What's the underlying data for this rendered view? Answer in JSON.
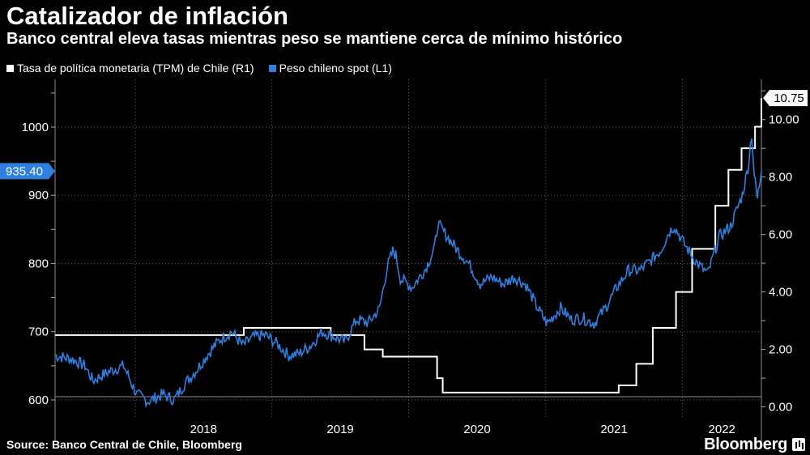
{
  "header": {
    "title": "Catalizador de inflación",
    "subtitle": "Banco central eleva tasas mientras peso se mantiene cerca de mínimo histórico"
  },
  "footer": {
    "source": "Source: Banco Central de Chile, Bloomberg",
    "brand": "Bloomberg"
  },
  "colors": {
    "background": "#000000",
    "peso": "#2f7fe0",
    "tpm": "#ffffff",
    "grid": "#666666"
  },
  "chart_data": {
    "type": "line",
    "title": "Catalizador de inflación",
    "subtitle": "Banco central eleva tasas mientras peso se mantiene cerca de mínimo histórico",
    "x_tick_labels": [
      "2018",
      "2019",
      "2020",
      "2021",
      "2022"
    ],
    "xlim": [
      "2017-06-01",
      "2022-07-31"
    ],
    "y_left": {
      "ticks": [
        "600",
        "700",
        "800",
        "900",
        "1000"
      ],
      "ylim": [
        575,
        1070
      ]
    },
    "y_right": {
      "ticks": [
        "0.00",
        "2.00",
        "4.00",
        "6.00",
        "8.00",
        "10.00"
      ],
      "ylim": [
        -0.35,
        11.4
      ]
    },
    "grid": true,
    "legend_position": "top-left",
    "series": [
      {
        "name": "Tasa de política monetaria (TPM) de Chile (R1)",
        "axis": "right",
        "color": "#ffffff",
        "step": true,
        "last_value_label": "10.75",
        "x": [
          "2017-06-01",
          "2018-10-18",
          "2019-06-07",
          "2019-09-05",
          "2019-10-24",
          "2020-03-17",
          "2020-04-01",
          "2021-07-15",
          "2021-08-31",
          "2021-10-14",
          "2021-12-15",
          "2022-01-27",
          "2022-03-30",
          "2022-05-04",
          "2022-06-08",
          "2022-07-14",
          "2022-07-31"
        ],
        "values": [
          2.5,
          2.75,
          2.5,
          2.0,
          1.75,
          1.0,
          0.5,
          0.75,
          1.5,
          2.75,
          4.0,
          5.5,
          7.0,
          8.25,
          9.0,
          9.75,
          10.75
        ]
      },
      {
        "name": "Peso chileno spot (L1)",
        "axis": "left",
        "color": "#2f7fe0",
        "step": false,
        "last_value_label": "935.40",
        "x": [
          "2017-06-01",
          "2017-07-15",
          "2017-08-20",
          "2017-09-10",
          "2017-10-01",
          "2017-10-25",
          "2017-12-01",
          "2018-01-05",
          "2018-02-05",
          "2018-03-15",
          "2018-04-15",
          "2018-05-15",
          "2018-06-15",
          "2018-07-15",
          "2018-08-15",
          "2018-09-15",
          "2018-10-15",
          "2018-11-15",
          "2018-12-15",
          "2019-01-15",
          "2019-02-15",
          "2019-03-15",
          "2019-04-15",
          "2019-05-15",
          "2019-06-15",
          "2019-07-15",
          "2019-08-15",
          "2019-09-15",
          "2019-10-15",
          "2019-11-05",
          "2019-11-20",
          "2019-11-28",
          "2019-12-10",
          "2020-01-10",
          "2020-02-15",
          "2020-03-10",
          "2020-03-19",
          "2020-04-10",
          "2020-05-10",
          "2020-06-10",
          "2020-07-10",
          "2020-08-10",
          "2020-09-10",
          "2020-10-10",
          "2020-11-10",
          "2020-12-10",
          "2021-01-05",
          "2021-02-10",
          "2021-03-10",
          "2021-04-10",
          "2021-05-10",
          "2021-06-10",
          "2021-07-10",
          "2021-08-10",
          "2021-09-10",
          "2021-10-10",
          "2021-11-05",
          "2021-11-25",
          "2021-12-10",
          "2022-01-10",
          "2022-02-10",
          "2022-03-10",
          "2022-04-10",
          "2022-05-10",
          "2022-06-10",
          "2022-06-25",
          "2022-07-05",
          "2022-07-12",
          "2022-07-20",
          "2022-07-31"
        ],
        "values": [
          665,
          660,
          650,
          628,
          635,
          642,
          650,
          608,
          598,
          608,
          600,
          625,
          645,
          668,
          688,
          700,
          680,
          693,
          695,
          682,
          665,
          668,
          680,
          700,
          693,
          685,
          718,
          713,
          733,
          795,
          818,
          812,
          778,
          765,
          792,
          822,
          858,
          842,
          820,
          800,
          770,
          780,
          770,
          780,
          768,
          735,
          712,
          735,
          718,
          720,
          712,
          735,
          765,
          790,
          790,
          805,
          820,
          845,
          855,
          825,
          800,
          785,
          840,
          855,
          900,
          940,
          990,
          930,
          895,
          935.4
        ]
      }
    ]
  }
}
